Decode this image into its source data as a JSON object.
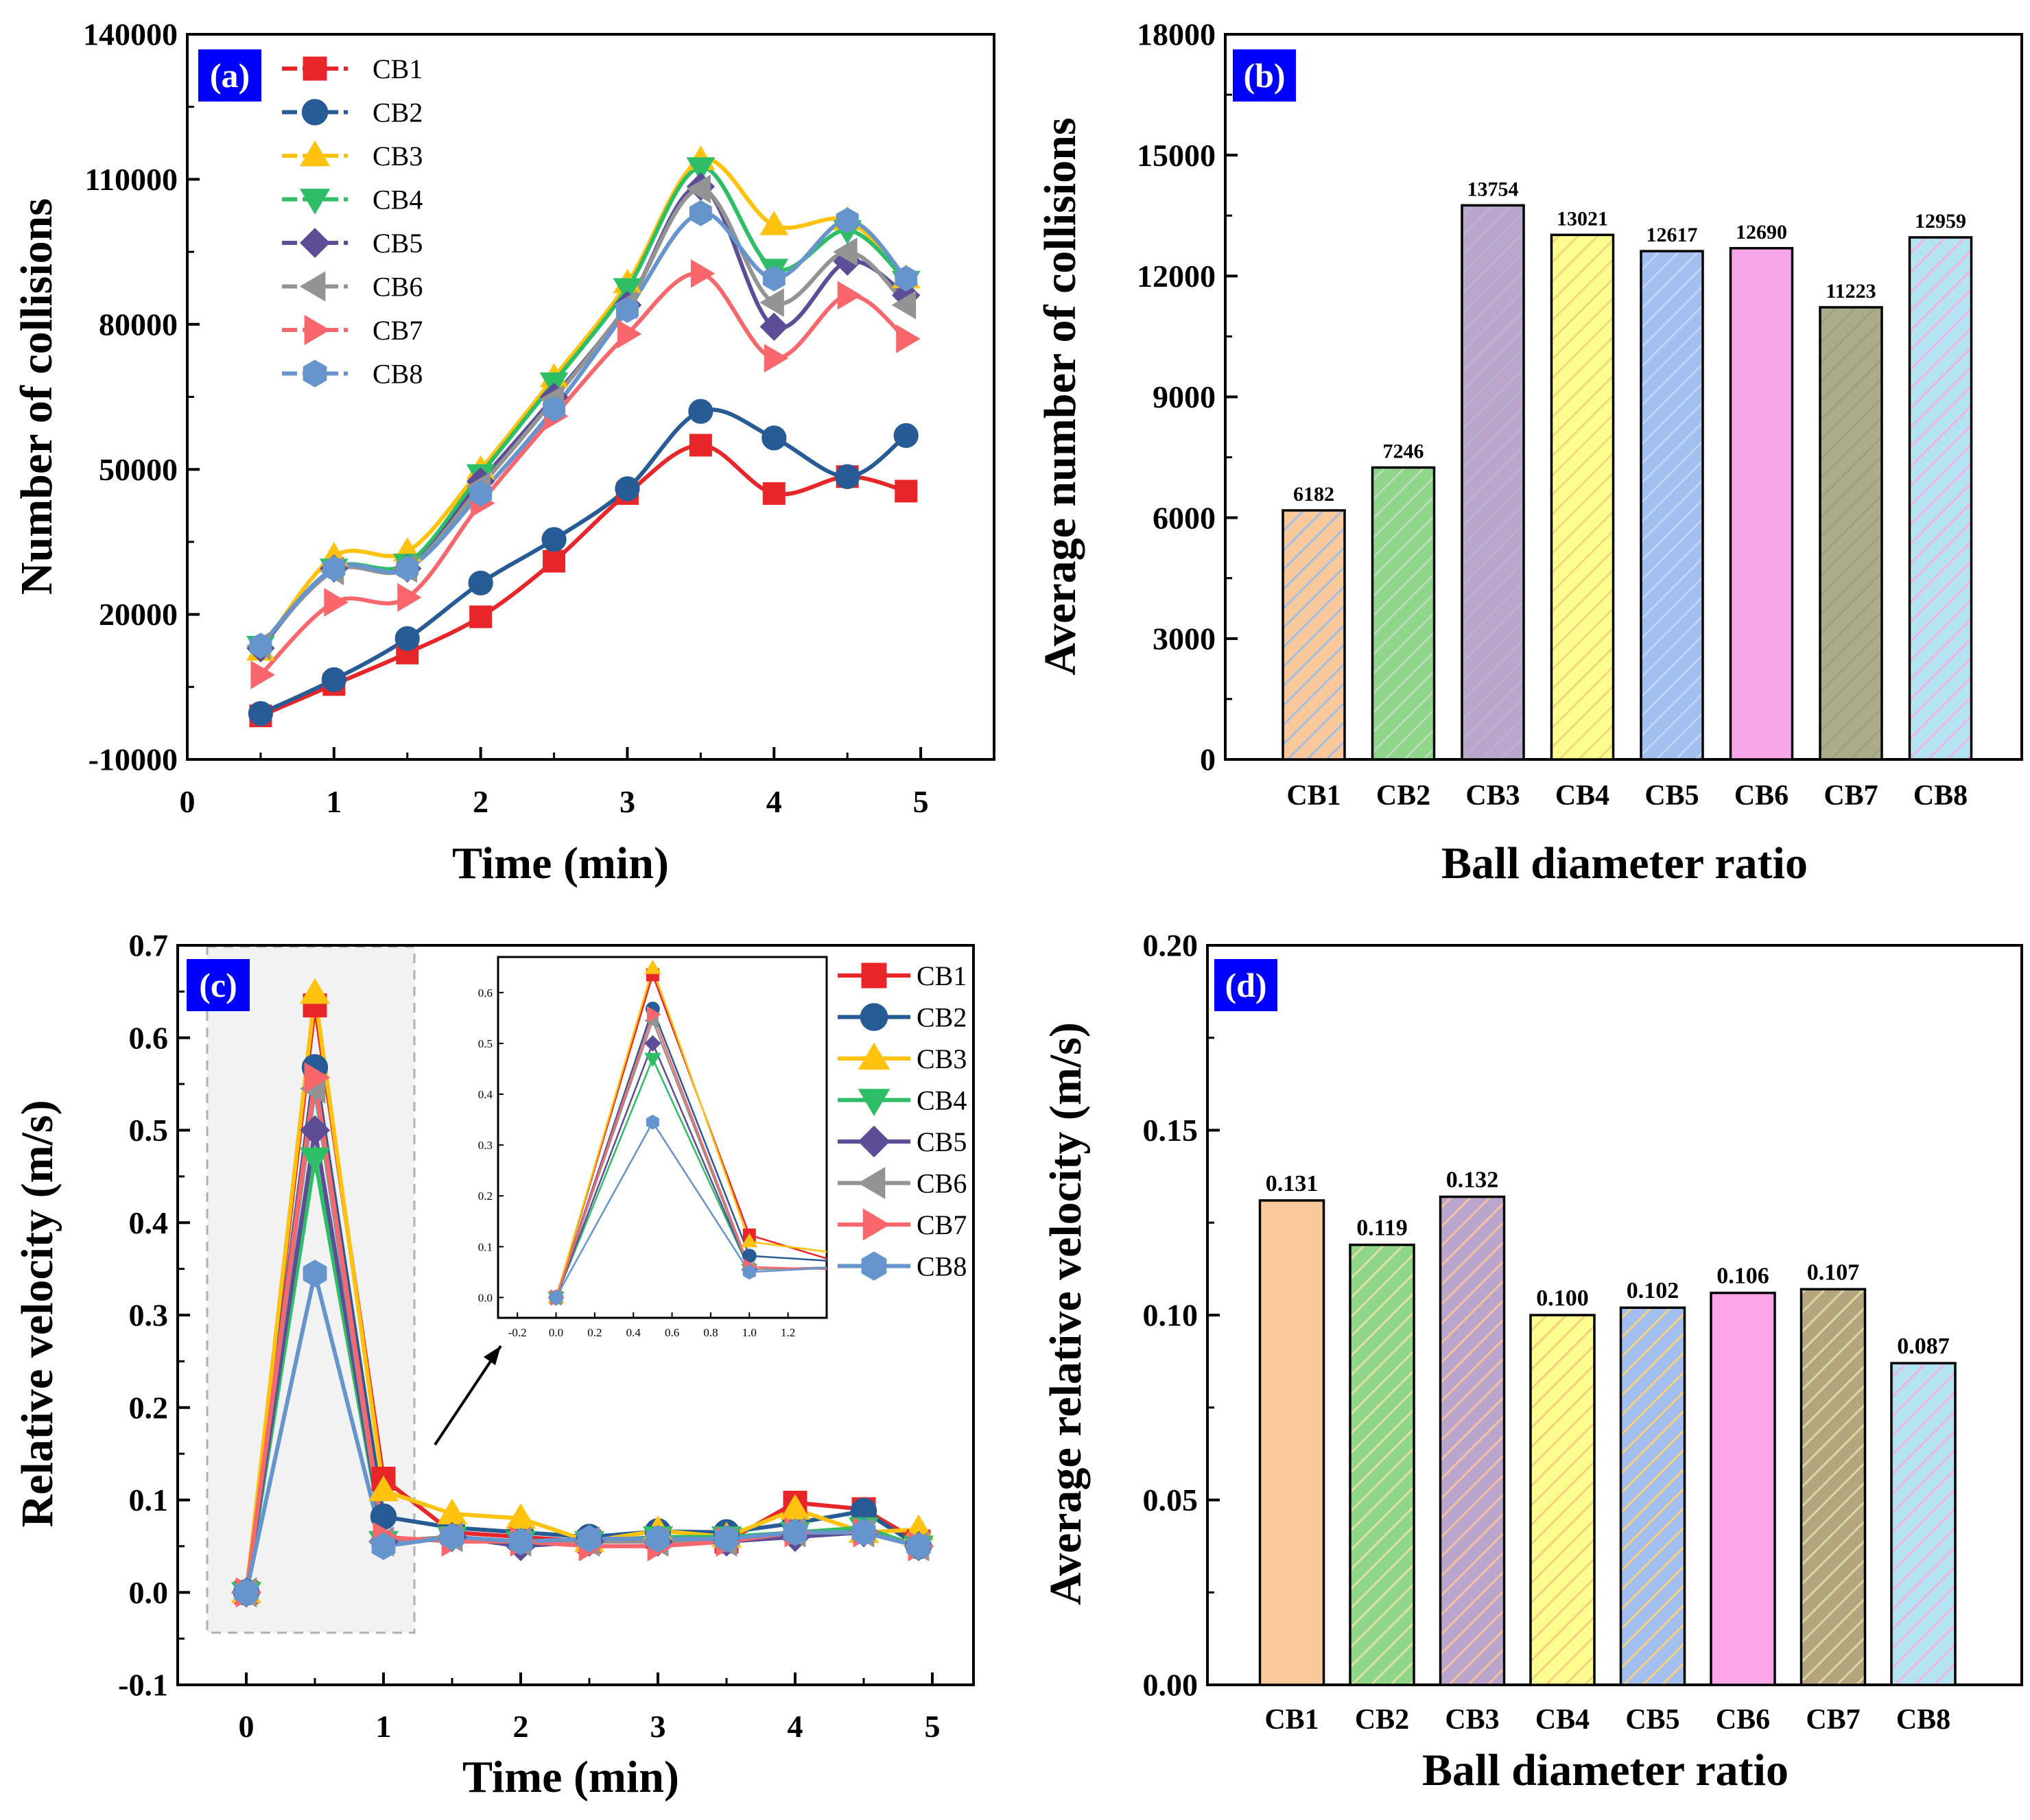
{
  "chart_data": [
    {
      "panel": "(a)",
      "type": "line",
      "xlabel": "Time (min)",
      "ylabel": "Number of collisions",
      "xlim": [
        0,
        5.5
      ],
      "ylim": [
        -10000,
        140000
      ],
      "xticks": [
        0,
        1,
        2,
        3,
        4,
        5
      ],
      "yticks": [
        -10000,
        20000,
        50000,
        80000,
        110000,
        140000
      ],
      "x": [
        0.5,
        1,
        1.5,
        2,
        2.5,
        3,
        3.5,
        4,
        4.5,
        4.9
      ],
      "series": [
        {
          "name": "CB1",
          "color": "#e8262a",
          "marker": "square",
          "values": [
            -1000,
            5500,
            12000,
            19500,
            31000,
            45000,
            55000,
            45000,
            48500,
            45500
          ]
        },
        {
          "name": "CB2",
          "color": "#275b95",
          "marker": "circle",
          "values": [
            -500,
            6500,
            15000,
            26500,
            35500,
            46000,
            62000,
            56500,
            48500,
            57000
          ]
        },
        {
          "name": "CB3",
          "color": "#ffc20e",
          "marker": "triangle-up",
          "values": [
            12500,
            32000,
            33000,
            50000,
            69000,
            88500,
            114000,
            100500,
            101500,
            89500
          ]
        },
        {
          "name": "CB4",
          "color": "#2dbe66",
          "marker": "triangle-down",
          "values": [
            13500,
            29500,
            30500,
            49000,
            68000,
            87500,
            112500,
            91500,
            99500,
            89000
          ]
        },
        {
          "name": "CB5",
          "color": "#5c4d96",
          "marker": "diamond",
          "values": [
            13000,
            29500,
            29500,
            47500,
            65000,
            84000,
            108500,
            79500,
            93000,
            86000
          ]
        },
        {
          "name": "CB6",
          "color": "#939393",
          "marker": "triangle-left",
          "values": [
            13500,
            29000,
            29500,
            46500,
            64500,
            84000,
            108000,
            84500,
            95000,
            84000
          ]
        },
        {
          "name": "CB7",
          "color": "#f9676c",
          "marker": "triangle-right",
          "values": [
            7500,
            22500,
            23500,
            43000,
            61000,
            78000,
            90500,
            73000,
            86000,
            77000
          ]
        },
        {
          "name": "CB8",
          "color": "#6694cc",
          "marker": "hexagon",
          "values": [
            13500,
            29500,
            29500,
            45000,
            62500,
            83000,
            103000,
            89500,
            101500,
            89500
          ]
        }
      ]
    },
    {
      "panel": "(b)",
      "type": "bar",
      "xlabel": "Ball diameter ratio",
      "ylabel": "Average number of collisions",
      "ylim": [
        0,
        18000
      ],
      "yticks": [
        0,
        3000,
        6000,
        9000,
        12000,
        15000,
        18000
      ],
      "categories": [
        "CB1",
        "CB2",
        "CB3",
        "CB4",
        "CB5",
        "CB6",
        "CB7",
        "CB8"
      ],
      "values": [
        6182,
        7246,
        13754,
        13021,
        12617,
        12690,
        11223,
        12959
      ],
      "labels": [
        "6182",
        "7246",
        "13754",
        "13021",
        "12617",
        "12690",
        "11223",
        "12959"
      ],
      "colors": [
        "#f9c89b",
        "#8fd58a",
        "#baa5cc",
        "#fdfd8f",
        "#a3bff0",
        "#f7a6ea",
        "#acac8a",
        "#b5e4f1"
      ],
      "hatch_colors": [
        "#a2bfe6",
        "#b9dcb9",
        "#b7b4cc",
        "#f2d87e",
        "#c0d3f4",
        "#f7a6ea",
        "#a0a07e",
        "#f3b1ec"
      ]
    },
    {
      "panel": "(c)",
      "type": "line",
      "xlabel": "Time (min)",
      "ylabel": "Relative velocity (m/s)",
      "xlim": [
        -0.5,
        5.3
      ],
      "ylim": [
        -0.1,
        0.7
      ],
      "xticks": [
        0,
        1,
        2,
        3,
        4,
        5
      ],
      "yticks": [
        -0.1,
        0.0,
        0.1,
        0.2,
        0.3,
        0.4,
        0.5,
        0.6,
        0.7
      ],
      "ytick_labels": [
        "-0.1",
        "0.0",
        "0.1",
        "0.2",
        "0.3",
        "0.4",
        "0.5",
        "0.6",
        "0.7"
      ],
      "x": [
        0,
        0.5,
        1,
        1.5,
        2,
        2.5,
        3,
        3.5,
        4,
        4.5,
        4.9
      ],
      "series": [
        {
          "name": "CB1",
          "color": "#e8262a",
          "marker": "square",
          "values": [
            0,
            0.635,
            0.123,
            0.065,
            0.06,
            0.055,
            0.06,
            0.055,
            0.097,
            0.09,
            0.055
          ]
        },
        {
          "name": "CB2",
          "color": "#275b95",
          "marker": "circle",
          "values": [
            0,
            0.568,
            0.082,
            0.07,
            0.065,
            0.06,
            0.066,
            0.065,
            0.075,
            0.088,
            0.05
          ]
        },
        {
          "name": "CB3",
          "color": "#ffc20e",
          "marker": "triangle-up",
          "values": [
            0,
            0.648,
            0.11,
            0.085,
            0.08,
            0.055,
            0.067,
            0.06,
            0.09,
            0.065,
            0.068
          ]
        },
        {
          "name": "CB4",
          "color": "#2dbe66",
          "marker": "triangle-down",
          "values": [
            0,
            0.47,
            0.055,
            0.06,
            0.055,
            0.055,
            0.06,
            0.06,
            0.065,
            0.07,
            0.05
          ]
        },
        {
          "name": "CB5",
          "color": "#5c4d96",
          "marker": "diamond",
          "values": [
            0,
            0.5,
            0.055,
            0.06,
            0.05,
            0.055,
            0.055,
            0.055,
            0.06,
            0.065,
            0.05
          ]
        },
        {
          "name": "CB6",
          "color": "#939393",
          "marker": "triangle-left",
          "values": [
            0,
            0.545,
            0.055,
            0.06,
            0.055,
            0.055,
            0.055,
            0.055,
            0.065,
            0.065,
            0.05
          ]
        },
        {
          "name": "CB7",
          "color": "#f9676c",
          "marker": "triangle-right",
          "values": [
            0,
            0.557,
            0.06,
            0.055,
            0.055,
            0.05,
            0.05,
            0.055,
            0.065,
            0.065,
            0.05
          ]
        },
        {
          "name": "CB8",
          "color": "#6694cc",
          "marker": "hexagon",
          "values": [
            0,
            0.345,
            0.05,
            0.06,
            0.055,
            0.058,
            0.058,
            0.058,
            0.065,
            0.065,
            0.05
          ]
        }
      ],
      "inset": {
        "xlim": [
          -0.3,
          1.4
        ],
        "ylim": [
          -0.04,
          0.67
        ],
        "xticks": [
          -0.2,
          0.0,
          0.2,
          0.4,
          0.6,
          0.8,
          1.0,
          1.2
        ],
        "xtick_labels": [
          "-0.2",
          "0.0",
          "0.2",
          "0.4",
          "0.6",
          "0.8",
          "1.0",
          "1.2"
        ],
        "yticks": [
          0.0,
          0.1,
          0.2,
          0.3,
          0.4,
          0.5,
          0.6
        ],
        "ytick_labels": [
          "0.0",
          "0.1",
          "0.2",
          "0.3",
          "0.4",
          "0.5",
          "0.6"
        ]
      }
    },
    {
      "panel": "(d)",
      "type": "bar",
      "xlabel": "Ball diameter ratio",
      "ylabel": "Average relative velocity (m/s)",
      "ylim": [
        0,
        0.2
      ],
      "yticks": [
        0.0,
        0.05,
        0.1,
        0.15,
        0.2
      ],
      "ytick_labels": [
        "0.00",
        "0.05",
        "0.10",
        "0.15",
        "0.20"
      ],
      "categories": [
        "CB1",
        "CB2",
        "CB3",
        "CB4",
        "CB5",
        "CB6",
        "CB7",
        "CB8"
      ],
      "values": [
        0.131,
        0.119,
        0.132,
        0.1,
        0.102,
        0.106,
        0.107,
        0.087
      ],
      "labels": [
        "0.131",
        "0.119",
        "0.132",
        "0.100",
        "0.102",
        "0.106",
        "0.107",
        "0.087"
      ],
      "colors": [
        "#f9c89b",
        "#8fd58a",
        "#baa5cc",
        "#fdfd8f",
        "#a3bff0",
        "#fca5e9",
        "#b4a57e",
        "#b5e4f1"
      ],
      "hatch_colors": [
        "#f9c89b",
        "#e0e0a0",
        "#f4c0a0",
        "#f5d07e",
        "#f5d07e",
        "#fca5e9",
        "#d8d8a0",
        "#f3b1ec"
      ]
    }
  ]
}
